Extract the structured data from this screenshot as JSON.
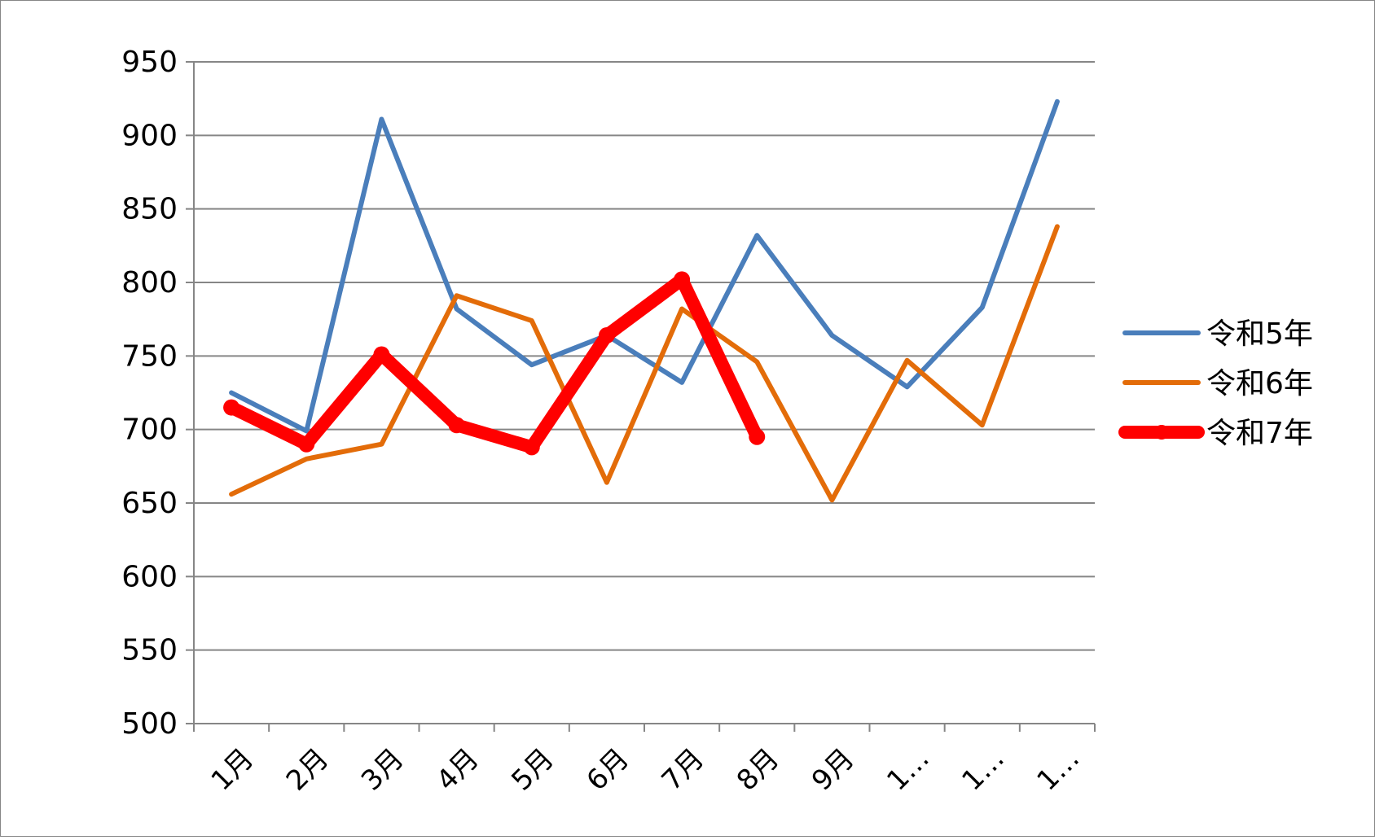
{
  "chart_data": {
    "type": "line",
    "title": "",
    "xlabel": "",
    "ylabel": "",
    "ylim": [
      500,
      950
    ],
    "yticks": [
      500,
      550,
      600,
      650,
      700,
      750,
      800,
      850,
      900,
      950
    ],
    "grid": true,
    "legend_position": "right",
    "categories": [
      "1月",
      "2月",
      "3月",
      "4月",
      "5月",
      "6月",
      "7月",
      "8月",
      "9月",
      "1…",
      "1…",
      "1…"
    ],
    "series": [
      {
        "name": "令和5年",
        "color": "#4a7ebb",
        "values": [
          725,
          699,
          911,
          782,
          744,
          764,
          732,
          832,
          764,
          729,
          783,
          923
        ]
      },
      {
        "name": "令和6年",
        "color": "#e36c09",
        "values": [
          656,
          680,
          690,
          791,
          774,
          664,
          782,
          746,
          652,
          747,
          703,
          838
        ]
      },
      {
        "name": "令和7年",
        "color": "#ff0000",
        "values": [
          715,
          690,
          751,
          703,
          688,
          764,
          802,
          695,
          null,
          null,
          null,
          null
        ]
      }
    ]
  }
}
